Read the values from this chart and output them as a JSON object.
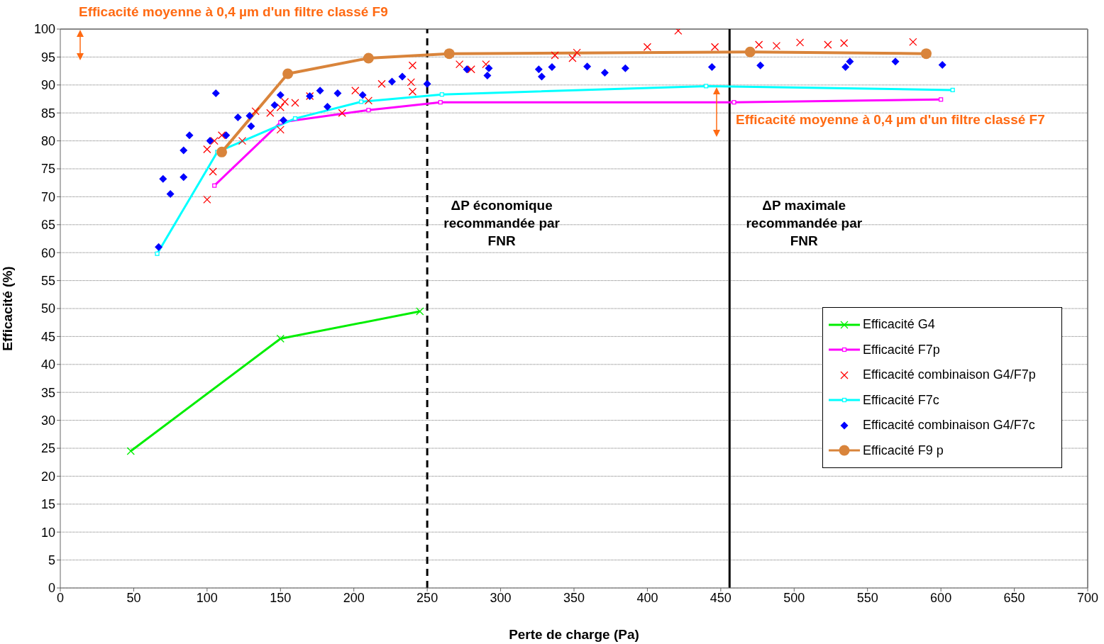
{
  "chart_data": {
    "type": "line",
    "xlabel": "Perte de charge (Pa)",
    "ylabel": "Efficacité (%)",
    "xlim": [
      0,
      700
    ],
    "xticks": [
      0,
      50,
      100,
      150,
      200,
      250,
      300,
      350,
      400,
      450,
      500,
      550,
      600,
      650,
      700
    ],
    "ylim": [
      0,
      100
    ],
    "yticks": [
      0,
      5,
      10,
      15,
      20,
      25,
      30,
      35,
      40,
      45,
      50,
      55,
      60,
      65,
      70,
      75,
      80,
      85,
      90,
      95,
      100
    ],
    "grid": "y",
    "legend": "bottom right",
    "series": [
      {
        "name": "Efficacité G4",
        "color": "#00ee00",
        "marker": "cross",
        "x": [
          48,
          150,
          245
        ],
        "values": [
          24.5,
          44.6,
          49.5
        ]
      },
      {
        "name": "Efficacité F7p",
        "color": "#ff00ff",
        "marker": "square",
        "x": [
          105,
          150,
          210,
          259,
          459,
          600
        ],
        "values": [
          72,
          83.3,
          85.5,
          86.9,
          86.9,
          87.4
        ]
      },
      {
        "name": "Efficacité combinaison G4/F7p",
        "type": "scatter",
        "color": "#ff0000",
        "marker": "cross",
        "x": [
          100,
          100,
          104,
          105,
          110,
          124,
          133,
          143,
          150,
          150,
          153,
          160,
          170,
          192,
          201,
          210,
          219,
          239,
          240,
          240,
          272,
          280,
          290,
          337,
          349,
          352,
          400,
          421,
          446,
          476,
          488,
          504,
          523,
          534,
          581
        ],
        "values": [
          78.5,
          69.5,
          74.5,
          80,
          81,
          80,
          85.3,
          85,
          82,
          86,
          87,
          86.8,
          88,
          85,
          89,
          87.2,
          90.2,
          90.5,
          88.8,
          93.5,
          93.7,
          92.8,
          93.7,
          95.3,
          94.8,
          95.8,
          96.8,
          99.7,
          96.8,
          97.2,
          97,
          97.6,
          97.2,
          97.5,
          97.7
        ]
      },
      {
        "name": "Efficacité F7c",
        "color": "#00ffff",
        "marker": "square",
        "x": [
          66,
          107,
          160,
          205,
          260,
          440,
          608
        ],
        "values": [
          59.8,
          78,
          84,
          87,
          88.3,
          89.8,
          89.1
        ]
      },
      {
        "name": "Efficacité combinaison G4/F7c",
        "type": "scatter",
        "color": "#0000ff",
        "marker": "diamond",
        "x": [
          67,
          70,
          75,
          84,
          84,
          88,
          102,
          106,
          113,
          121,
          129,
          130,
          146,
          150,
          152,
          170,
          177,
          182,
          189,
          206,
          226,
          233,
          250,
          277,
          291,
          292,
          326,
          328,
          335,
          359,
          371,
          385,
          444,
          477,
          535,
          538,
          569,
          601
        ],
        "values": [
          61,
          73.2,
          70.5,
          78.3,
          73.5,
          81,
          80,
          88.5,
          81,
          84.2,
          84.5,
          82.6,
          86.4,
          88.2,
          83.7,
          88,
          89,
          86.1,
          88.5,
          88.2,
          90.6,
          91.5,
          90.2,
          92.8,
          91.7,
          93,
          92.8,
          91.5,
          93.2,
          93.3,
          92.2,
          93,
          93.2,
          93.5,
          93.2,
          94.2,
          94.2,
          93.6
        ]
      },
      {
        "name": "Efficacité F9 p",
        "color": "#d9843b",
        "marker": "circle",
        "x": [
          110,
          155,
          210,
          265,
          470,
          590
        ],
        "values": [
          78,
          92,
          94.8,
          95.6,
          95.9,
          95.6
        ]
      }
    ],
    "ref_lines": [
      {
        "axis": "x",
        "value": 250,
        "label": "ΔP économique recommandée par FNR",
        "line_style": "dashed",
        "color": "#000000"
      },
      {
        "axis": "x",
        "value": 456,
        "label": "ΔP maximale recommandée par FNR",
        "line_style": "solid",
        "color": "#000000"
      }
    ],
    "annotations": [
      "Efficacité moyenne à 0,4 µm d'un filtre classé F9",
      "Efficacité moyenne à 0,4 µm d'un filtre classé F7"
    ]
  }
}
